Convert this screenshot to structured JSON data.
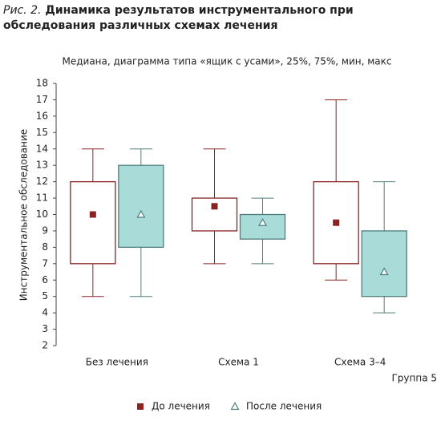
{
  "chart_data": {
    "type": "box",
    "figure_label": "Рис. 2.",
    "title": "Динамика результатов инструментального при обследования различных схемах лечения",
    "subtitle": "Медиана, диаграмма типа «ящик с усами», 25%, 75%, мин, макс",
    "ylabel": "Инструментальное обследование",
    "xlabel": "Группа 5",
    "categories": [
      "Без лечения",
      "Схема 1",
      "Схема 3–4"
    ],
    "ylim": [
      2,
      18
    ],
    "yticks": [
      2,
      3,
      4,
      5,
      6,
      7,
      8,
      9,
      10,
      11,
      12,
      13,
      14,
      15,
      16,
      17,
      18
    ],
    "series": [
      {
        "name": "До лечения",
        "color": "#8b2323",
        "fill": "#ffffff",
        "marker": "square",
        "min": [
          5,
          7,
          6
        ],
        "q1": [
          7,
          9,
          7
        ],
        "median": [
          10,
          10.5,
          9.5
        ],
        "q3": [
          12,
          11,
          12
        ],
        "max": [
          14,
          14,
          17
        ]
      },
      {
        "name": "После лечения",
        "color": "#4e7f7c",
        "fill": "#a9dcd9",
        "marker": "triangle",
        "min": [
          5,
          7,
          4
        ],
        "q1": [
          8,
          8.5,
          5
        ],
        "median": [
          10,
          9.5,
          6.5
        ],
        "q3": [
          13,
          10,
          9
        ],
        "max": [
          14,
          11,
          12
        ]
      }
    ]
  }
}
